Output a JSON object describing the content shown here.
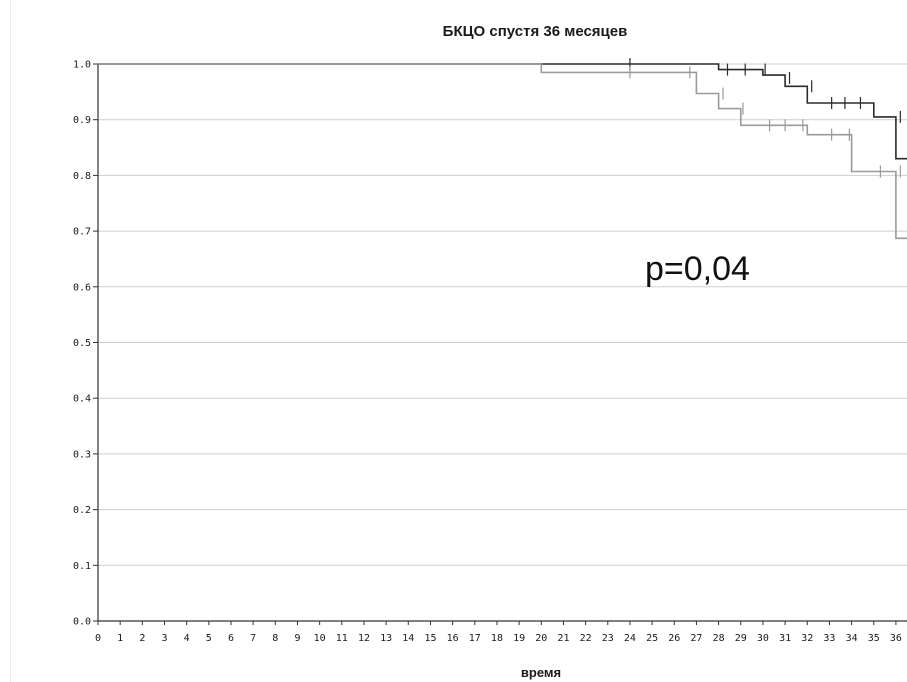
{
  "chart_data": {
    "type": "line",
    "title": "БКЦО спустя 36 месяцев",
    "xlabel": "время",
    "ylabel": "",
    "x_ticks": [
      "0",
      "1",
      "2",
      "3",
      "4",
      "5",
      "6",
      "7",
      "8",
      "9",
      "10",
      "11",
      "12",
      "13",
      "14",
      "15",
      "16",
      "17",
      "18",
      "19",
      "20",
      "21",
      "22",
      "23",
      "24",
      "25",
      "26",
      "27",
      "28",
      "29",
      "30",
      "31",
      "32",
      "33",
      "34",
      "35",
      "36"
    ],
    "y_ticks": [
      "0.0",
      "0.1",
      "0.2",
      "0.3",
      "0.4",
      "0.5",
      "0.6",
      "0.7",
      "0.8",
      "0.9",
      "1.0"
    ],
    "xlim": [
      0,
      36.5
    ],
    "ylim": [
      0,
      1.0
    ],
    "grid": true,
    "annotation": "p=0,04",
    "series": [
      {
        "color": "#2b2b2b",
        "steps": [
          [
            0,
            1.0
          ],
          [
            28,
            0.99
          ],
          [
            30,
            0.98
          ],
          [
            31,
            0.96
          ],
          [
            32,
            0.93
          ],
          [
            35,
            0.905
          ],
          [
            36,
            0.83
          ]
        ],
        "censored": [
          [
            24,
            1.0
          ],
          [
            28.4,
            0.99
          ],
          [
            29.2,
            0.99
          ],
          [
            30.1,
            0.99
          ],
          [
            31.2,
            0.975
          ],
          [
            32.2,
            0.96
          ],
          [
            33.1,
            0.93
          ],
          [
            33.7,
            0.93
          ],
          [
            34.4,
            0.93
          ],
          [
            36.2,
            0.905
          ]
        ]
      },
      {
        "color": "#9a9a9a",
        "steps": [
          [
            0,
            1.0
          ],
          [
            20,
            0.985
          ],
          [
            27,
            0.947
          ],
          [
            28,
            0.92
          ],
          [
            29,
            0.89
          ],
          [
            32,
            0.873
          ],
          [
            34,
            0.807
          ],
          [
            36,
            0.687
          ]
        ],
        "censored": [
          [
            24,
            0.985
          ],
          [
            26.7,
            0.985
          ],
          [
            28.2,
            0.947
          ],
          [
            29.1,
            0.92
          ],
          [
            30.3,
            0.89
          ],
          [
            31,
            0.89
          ],
          [
            31.8,
            0.89
          ],
          [
            33.1,
            0.873
          ],
          [
            33.9,
            0.873
          ],
          [
            35.3,
            0.807
          ],
          [
            36.2,
            0.807
          ]
        ]
      }
    ]
  }
}
